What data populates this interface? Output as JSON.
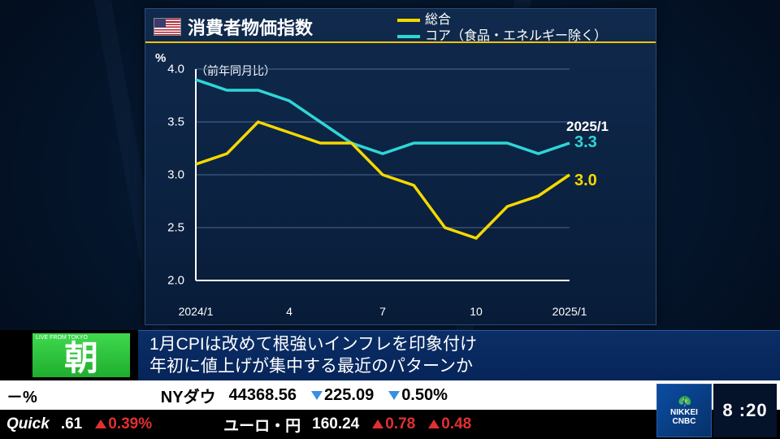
{
  "colors": {
    "series_sogo": "#f5d800",
    "series_core": "#2fd6d6",
    "grid": "#4a6a90",
    "axis": "#ffffff",
    "up_red": "#e03030",
    "down_blue": "#3a8fe0"
  },
  "panel": {
    "title": "消費者物価指数",
    "subtitle": "（前年同月比）",
    "y_unit": "%",
    "legend": [
      {
        "label": "総合",
        "color_key": "series_sogo"
      },
      {
        "label": "コア（食品・エネルギー除く）",
        "color_key": "series_core"
      }
    ],
    "end_date_label": "2025/1",
    "ylim": [
      2.0,
      4.0
    ],
    "yticks": [
      2.0,
      2.5,
      3.0,
      3.5,
      4.0
    ],
    "xticks": [
      {
        "idx": 0,
        "label": "2024/1"
      },
      {
        "idx": 3,
        "label": "4"
      },
      {
        "idx": 6,
        "label": "7"
      },
      {
        "idx": 9,
        "label": "10"
      },
      {
        "idx": 12,
        "label": "2025/1"
      }
    ],
    "n_points": 13,
    "series": {
      "sogo": {
        "values": [
          3.1,
          3.2,
          3.5,
          3.4,
          3.3,
          3.3,
          3.0,
          2.9,
          2.5,
          2.4,
          2.7,
          2.8,
          3.0
        ],
        "end_value": "3.0"
      },
      "core": {
        "values": [
          3.9,
          3.8,
          3.8,
          3.7,
          3.5,
          3.3,
          3.2,
          3.3,
          3.3,
          3.3,
          3.3,
          3.2,
          3.3
        ],
        "end_value": "3.3"
      }
    }
  },
  "banner": {
    "live_tag": "LIVE FROM TOKYO",
    "badge_char": "朝",
    "line1": "1月CPIは改めて根強いインフレを印象付け",
    "line2": "年初に値上げが集中する最近のパターンか"
  },
  "ticker1": {
    "left_pct": "－%",
    "name": "NYダウ",
    "value": "44368.56",
    "chg": "225.09",
    "pct": "0.50%",
    "dir": "down"
  },
  "ticker2": {
    "brand": "Quick",
    "a_val": ".61",
    "a_pct": "0.39%",
    "a_dir": "up",
    "pair": "ユーロ・円",
    "b_val": "160.24",
    "b_chg": "0.78",
    "b_pct": "0.48",
    "b_dir": "up"
  },
  "logo": {
    "line1": "NIKKEI",
    "line2": "CNBC"
  },
  "clock": "8 :20"
}
